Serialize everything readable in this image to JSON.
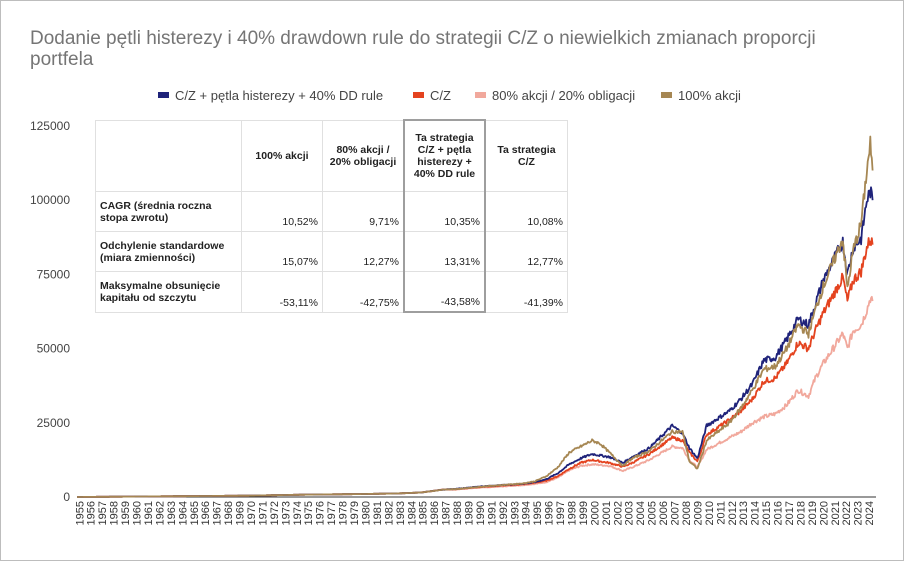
{
  "chart_data": {
    "type": "line",
    "title": "Dodanie pętli histerezy i 40% drawdown rule do strategii C/Z o niewielkich zmianach proporcji portfela",
    "xlabel": "",
    "ylabel": "",
    "legend_position": "top",
    "grid": false,
    "ylim": [
      0,
      125000
    ],
    "y_ticks": [
      "0",
      "25000",
      "50000",
      "75000",
      "100000",
      "125000"
    ],
    "x_ticks": [
      "1955",
      "1956",
      "1957",
      "1958",
      "1959",
      "1960",
      "1961",
      "1962",
      "1963",
      "1964",
      "1965",
      "1966",
      "1967",
      "1968",
      "1969",
      "1970",
      "1971",
      "1972",
      "1973",
      "1974",
      "1975",
      "1976",
      "1977",
      "1978",
      "1979",
      "1980",
      "1981",
      "1982",
      "1983",
      "1984",
      "1985",
      "1986",
      "1987",
      "1988",
      "1989",
      "1990",
      "1991",
      "1992",
      "1993",
      "1994",
      "1995",
      "1996",
      "1997",
      "1998",
      "1999",
      "2000",
      "2001",
      "2002",
      "2003",
      "2004",
      "2005",
      "2006",
      "2007",
      "2008",
      "2009",
      "2010",
      "2011",
      "2012",
      "2013",
      "2014",
      "2015",
      "2016",
      "2017",
      "2018",
      "2019",
      "2020",
      "2021",
      "2022",
      "2023",
      "2024"
    ],
    "x": [
      1955,
      1960,
      1965,
      1970,
      1975,
      1980,
      1983,
      1985,
      1987,
      1988,
      1990,
      1992,
      1994,
      1995,
      1996,
      1997,
      1998,
      1999,
      2000,
      2000.7,
      2001.5,
      2002.7,
      2003.5,
      2005,
      2007,
      2007.9,
      2008.5,
      2009.2,
      2010,
      2012,
      2013,
      2014,
      2015,
      2016,
      2017,
      2018,
      2018.9,
      2019.5,
      2020.2,
      2021.9,
      2022.3,
      2022.8,
      2023.5,
      2024,
      2024.3,
      2024.5
    ],
    "series": [
      {
        "name": "C/Z + pętla histerezy + 40% DD rule",
        "color": "#1f237a",
        "values": [
          0,
          150,
          300,
          450,
          800,
          1000,
          1200,
          1500,
          2500,
          2700,
          3500,
          4000,
          4500,
          5000,
          6000,
          8000,
          11000,
          13000,
          14500,
          14000,
          13500,
          11500,
          13500,
          16500,
          24000,
          21500,
          16500,
          13000,
          24000,
          29000,
          33000,
          38000,
          46000,
          47000,
          53000,
          60000,
          58000,
          65000,
          73000,
          86000,
          75000,
          84000,
          87000,
          100000,
          103000,
          100000
        ]
      },
      {
        "name": "C/Z",
        "color": "#e4431f",
        "values": [
          0,
          150,
          300,
          450,
          800,
          1000,
          1200,
          1500,
          2500,
          2600,
          3300,
          3800,
          4300,
          4800,
          5500,
          7000,
          9500,
          11500,
          12500,
          12000,
          11500,
          10200,
          11500,
          14500,
          20000,
          19000,
          15000,
          12000,
          21000,
          26000,
          29000,
          33000,
          39000,
          40000,
          45000,
          52000,
          50000,
          56000,
          62000,
          74000,
          66000,
          73000,
          76000,
          84000,
          87000,
          85000
        ]
      },
      {
        "name": "80% akcji / 20% obligacji",
        "color": "#f1a89c",
        "values": [
          0,
          150,
          300,
          450,
          800,
          1000,
          1200,
          1500,
          2500,
          2500,
          3100,
          3500,
          4000,
          4400,
          5000,
          6500,
          9000,
          10500,
          11000,
          10800,
          10500,
          8800,
          10000,
          12500,
          17000,
          16500,
          12500,
          10000,
          16000,
          20000,
          22000,
          25000,
          27000,
          28000,
          31000,
          36000,
          34000,
          40000,
          45000,
          55000,
          50000,
          56000,
          58000,
          63000,
          67000,
          66000
        ]
      },
      {
        "name": "100% akcji",
        "color": "#a68753",
        "values": [
          0,
          150,
          300,
          450,
          800,
          1000,
          1200,
          1500,
          2500,
          2600,
          3400,
          4000,
          4600,
          5300,
          7000,
          10000,
          15000,
          17000,
          19000,
          18000,
          15000,
          10500,
          13000,
          15500,
          22000,
          22000,
          12000,
          9500,
          19000,
          25000,
          30000,
          36000,
          43000,
          44000,
          50000,
          58000,
          55000,
          63000,
          71000,
          87000,
          70000,
          83000,
          92000,
          110000,
          119000,
          110000
        ]
      }
    ]
  },
  "table": {
    "headers": [
      "",
      "100% akcji",
      "80% akcji /\n20% obligacji",
      "Ta strategia\nC/Z + pętla\nhisterezy +\n40% DD rule",
      "Ta strategia\nC/Z"
    ],
    "rows": [
      {
        "label": "CAGR (średnia roczna stopa zwrotu)",
        "values": [
          "10,52%",
          "9,71%",
          "10,35%",
          "10,08%"
        ]
      },
      {
        "label": "Odchylenie standardowe (miara zmienności)",
        "values": [
          "15,07%",
          "12,27%",
          "13,31%",
          "12,77%"
        ]
      },
      {
        "label": "Maksymalne obsunięcie kapitału od szczytu",
        "values": [
          "-53,11%",
          "-42,75%",
          "-43,58%",
          "-41,39%"
        ]
      }
    ]
  }
}
